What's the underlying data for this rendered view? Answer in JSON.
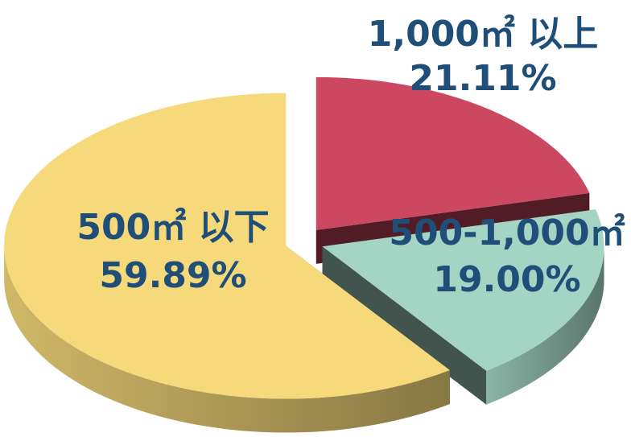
{
  "chart_data": {
    "type": "pie",
    "categories": [
      "1,000㎡ 以上",
      "500-1,000㎡",
      "500㎡ 以下"
    ],
    "values": [
      21.11,
      19.0,
      59.89
    ],
    "value_labels": [
      "21.11%",
      "19.00%",
      "59.89%"
    ],
    "colors": [
      "#cc4760",
      "#a3d4c4",
      "#f5d97a"
    ]
  }
}
